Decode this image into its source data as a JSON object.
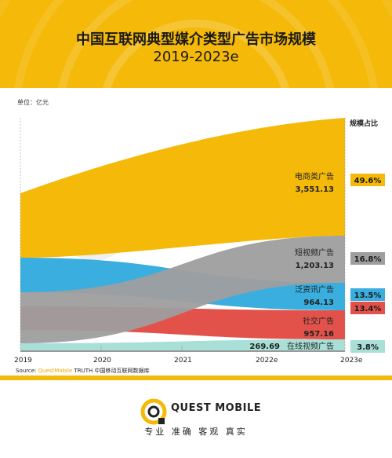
{
  "title_line1": "中国互联网典型媒介类型广告市场规模",
  "title_line2": "2019-2023e",
  "unit_label": "单位：亿元",
  "share_header": "规模占比",
  "source_prefix": "Source:",
  "source_brand": "QuestMobile",
  "source_rest": "TRUTH 中国移动互联网数据库",
  "brand_name": "QUEST MOBILE",
  "slogan": "专业 准确 客观 真实",
  "colors": {
    "header": "#f5b90a",
    "accent_yellow": "#f5b90a"
  },
  "chart_data": {
    "type": "area",
    "x": [
      "2019",
      "2020",
      "2021",
      "2022e",
      "2023e"
    ],
    "series": [
      {
        "name": "电商类广告",
        "label_2023": "3,551.13",
        "share": "49.6%",
        "color": "#f5b90a"
      },
      {
        "name": "短视频广告",
        "label_2023": "1,203.13",
        "share": "16.8%",
        "color": "#9e9e9e"
      },
      {
        "name": "泛资讯广告",
        "label_2023": "964.13",
        "share": "13.5%",
        "color": "#3aaedf"
      },
      {
        "name": "社交广告",
        "label_2023": "957.16",
        "share": "13.4%",
        "color": "#e2524a"
      },
      {
        "name": "在线视频广告",
        "label_2023": "269.69",
        "share": "3.8%",
        "color": "#a8dfd6"
      }
    ]
  }
}
